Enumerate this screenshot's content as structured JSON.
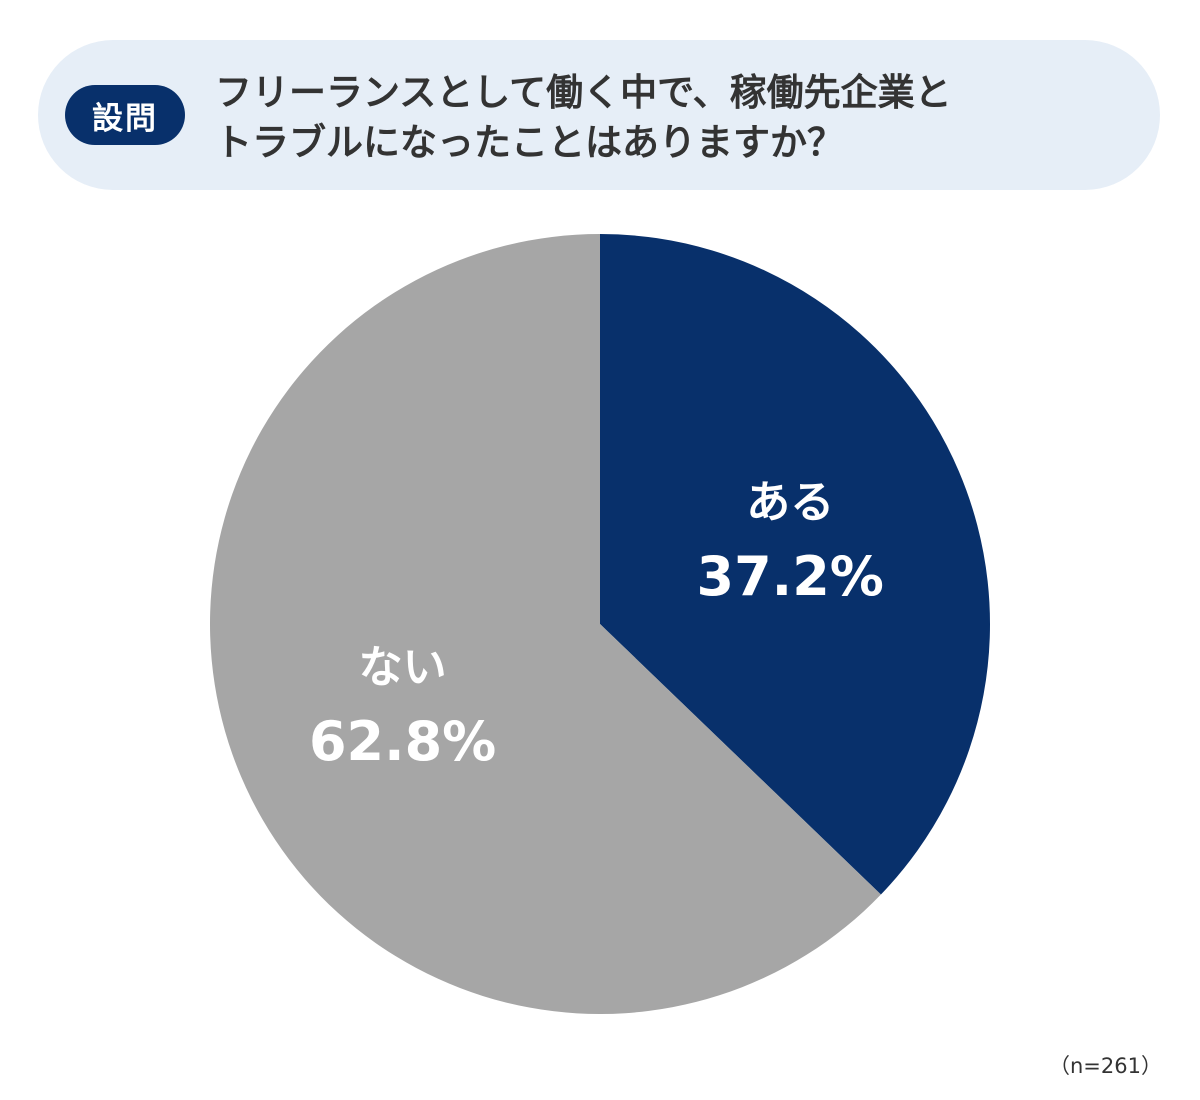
{
  "question": {
    "badge": "設問",
    "lines": [
      "フリーランスとして働く中で、稼働先企業と",
      "トラブルになったことはありますか？"
    ]
  },
  "chart_data": {
    "type": "pie",
    "start": "12 o'clock",
    "direction": "clockwise",
    "slices": [
      {
        "label": "ある",
        "value": 37.2,
        "value_label": "37.2%",
        "color": "#08306b"
      },
      {
        "label": "ない",
        "value": 62.8,
        "value_label": "62.8%",
        "color": "#a6a6a6"
      }
    ]
  },
  "sample_size": "（n=261）"
}
